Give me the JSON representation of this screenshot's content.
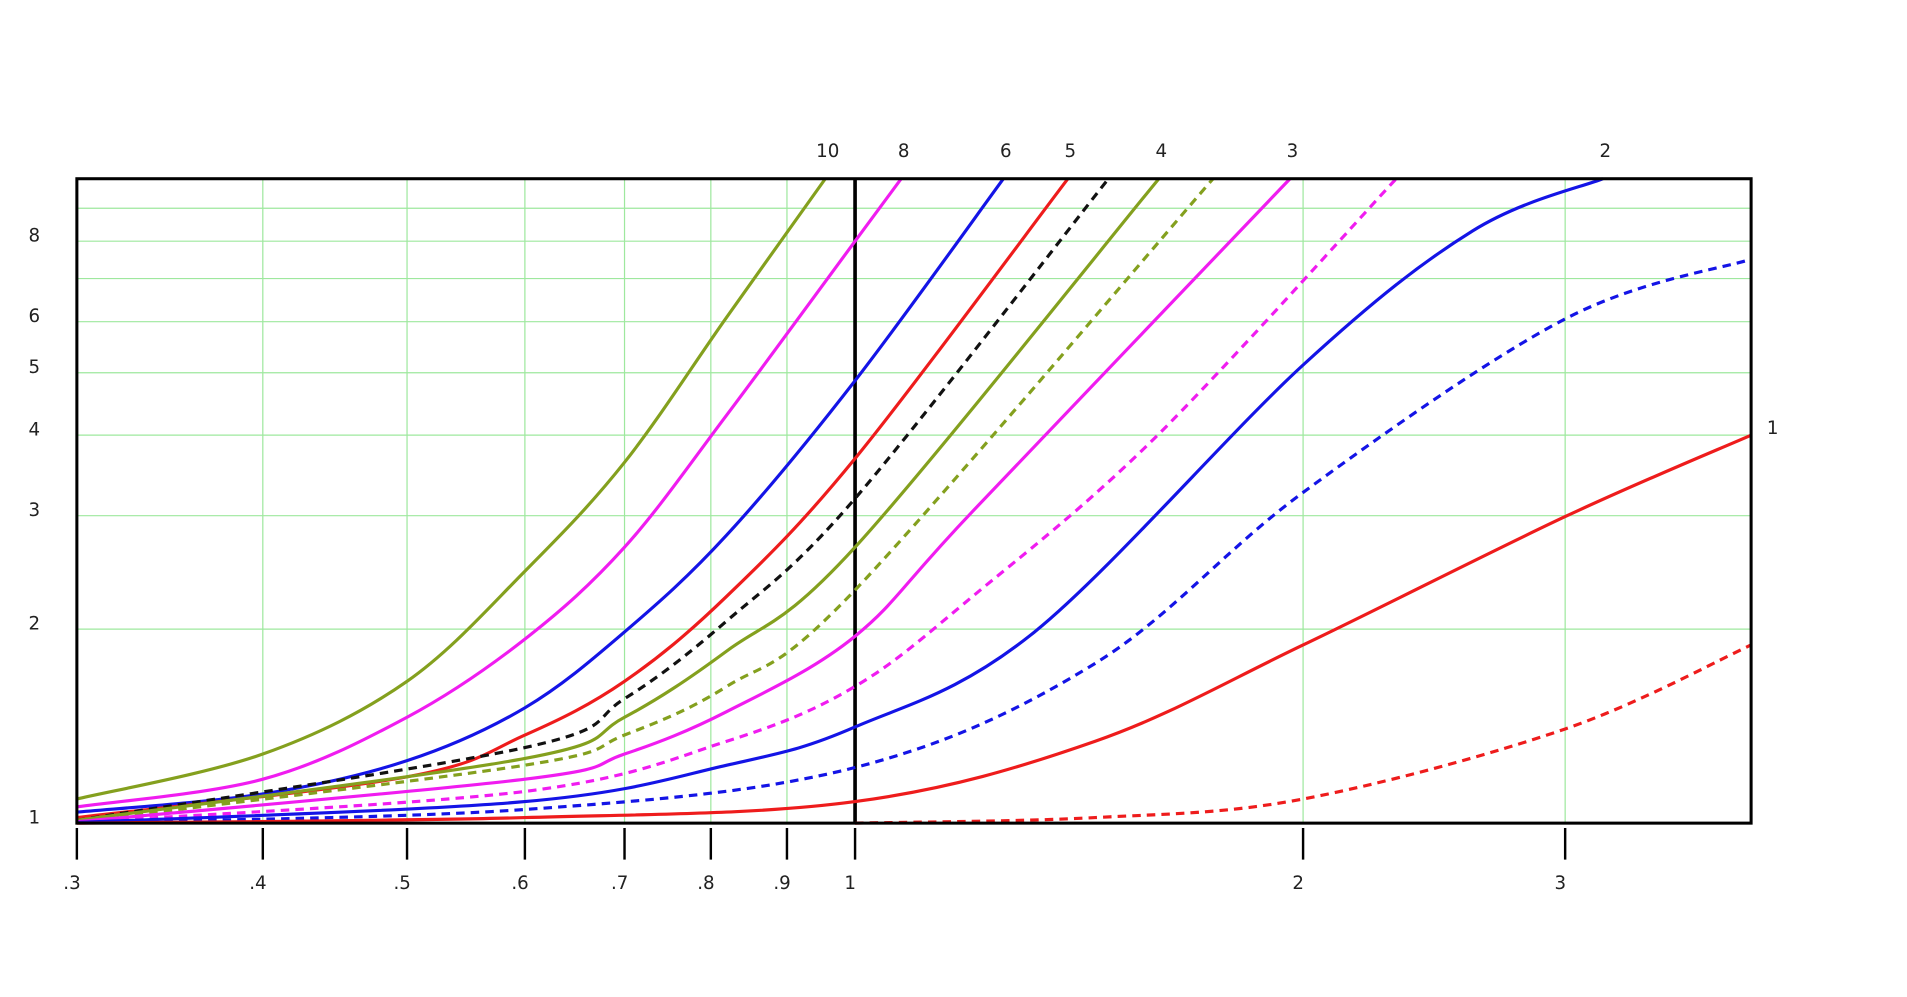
{
  "chart_data": {
    "type": "line",
    "xscale": "log",
    "yscale": "log",
    "xlim": [
      0.3,
      4
    ],
    "ylim": [
      1,
      10
    ],
    "xticks": [
      {
        "value": 0.3,
        "label": ".3"
      },
      {
        "value": 0.4,
        "label": ".4"
      },
      {
        "value": 0.5,
        "label": ".5"
      },
      {
        "value": 0.6,
        "label": ".6"
      },
      {
        "value": 0.7,
        "label": ".7"
      },
      {
        "value": 0.8,
        "label": ".8"
      },
      {
        "value": 0.9,
        "label": ".9"
      },
      1,
      2,
      3
    ],
    "yticks": [
      1,
      2,
      3,
      4,
      5,
      6,
      8
    ],
    "yminorticks": [
      7,
      9
    ],
    "grid": true,
    "grid_color": "#9ee89e",
    "reference_x": 1,
    "series": [
      {
        "name": "10",
        "color": "#84a01e",
        "dashed": false,
        "x": [
          0.3,
          0.4,
          0.5,
          0.6,
          0.7,
          0.82,
          0.955
        ],
        "values": [
          1.09,
          1.28,
          1.66,
          2.46,
          3.63,
          6.1,
          10
        ]
      },
      {
        "name": "8",
        "color": "#f01cf0",
        "dashed": false,
        "x": [
          0.3,
          0.4,
          0.5,
          0.6,
          0.7,
          0.82,
          1,
          1.074
        ],
        "values": [
          1.06,
          1.17,
          1.46,
          1.93,
          2.68,
          4.3,
          8.0,
          10
        ]
      },
      {
        "name": "6",
        "color": "#1414e6",
        "dashed": false,
        "x": [
          0.3,
          0.4,
          0.5,
          0.6,
          0.7,
          0.82,
          1,
          1.258
        ],
        "values": [
          1.04,
          1.11,
          1.25,
          1.51,
          1.98,
          2.8,
          4.86,
          10
        ]
      },
      {
        "name": "5",
        "color": "#ee1c1c",
        "dashed": false,
        "x": [
          0.3,
          0.5,
          0.6,
          0.7,
          0.82,
          1,
          1.39
        ],
        "values": [
          1.02,
          1.18,
          1.37,
          1.66,
          2.25,
          3.68,
          10
        ]
      },
      {
        "color": "#111111",
        "dashed": true,
        "x": [
          0.3,
          0.6,
          0.7,
          0.82,
          1,
          1.48
        ],
        "values": [
          1.01,
          1.31,
          1.56,
          2.06,
          3.19,
          10
        ]
      },
      {
        "name": "4",
        "color": "#84a01e",
        "dashed": false,
        "x": [
          0.3,
          0.6,
          0.7,
          0.82,
          1,
          1.6
        ],
        "values": [
          1.01,
          1.26,
          1.46,
          1.85,
          2.68,
          10
        ]
      },
      {
        "color": "#84a01e",
        "dashed": true,
        "x": [
          0.3,
          0.6,
          0.7,
          0.82,
          1,
          1.74
        ],
        "values": [
          1.005,
          1.23,
          1.37,
          1.63,
          2.3,
          10
        ]
      },
      {
        "name": "3",
        "color": "#f01cf0",
        "dashed": false,
        "x": [
          0.3,
          0.6,
          0.7,
          0.82,
          1,
          1.2,
          1.96
        ],
        "values": [
          1.005,
          1.17,
          1.28,
          1.49,
          1.95,
          3.05,
          10
        ]
      },
      {
        "color": "#f01cf0",
        "dashed": true,
        "x": [
          0.3,
          0.6,
          0.82,
          1,
          1.2,
          1.59,
          2.31
        ],
        "values": [
          1.003,
          1.12,
          1.34,
          1.63,
          2.25,
          3.96,
          10
        ]
      },
      {
        "name": "2",
        "color": "#1414e6",
        "dashed": false,
        "x": [
          0.3,
          0.6,
          0.82,
          1,
          1.32,
          2,
          2.6,
          3.18
        ],
        "values": [
          1.002,
          1.08,
          1.23,
          1.41,
          1.98,
          5.14,
          8.3,
          10
        ]
      },
      {
        "color": "#1414e6",
        "dashed": true,
        "x": [
          0.3,
          0.6,
          1,
          1.45,
          2,
          3,
          4
        ],
        "values": [
          1.001,
          1.05,
          1.22,
          1.77,
          3.26,
          6.06,
          7.5
        ]
      },
      {
        "name": "1",
        "color": "#ee1c1c",
        "dashed": false,
        "x": [
          0.3,
          0.6,
          1,
          1.45,
          2,
          3,
          4
        ],
        "values": [
          1,
          1.02,
          1.08,
          1.34,
          1.89,
          2.99,
          4.0
        ]
      },
      {
        "color": "#ee1c1c",
        "dashed": true,
        "x": [
          1,
          1.45,
          2,
          3,
          4
        ],
        "values": [
          1.0,
          1.02,
          1.09,
          1.4,
          1.89
        ]
      }
    ]
  }
}
